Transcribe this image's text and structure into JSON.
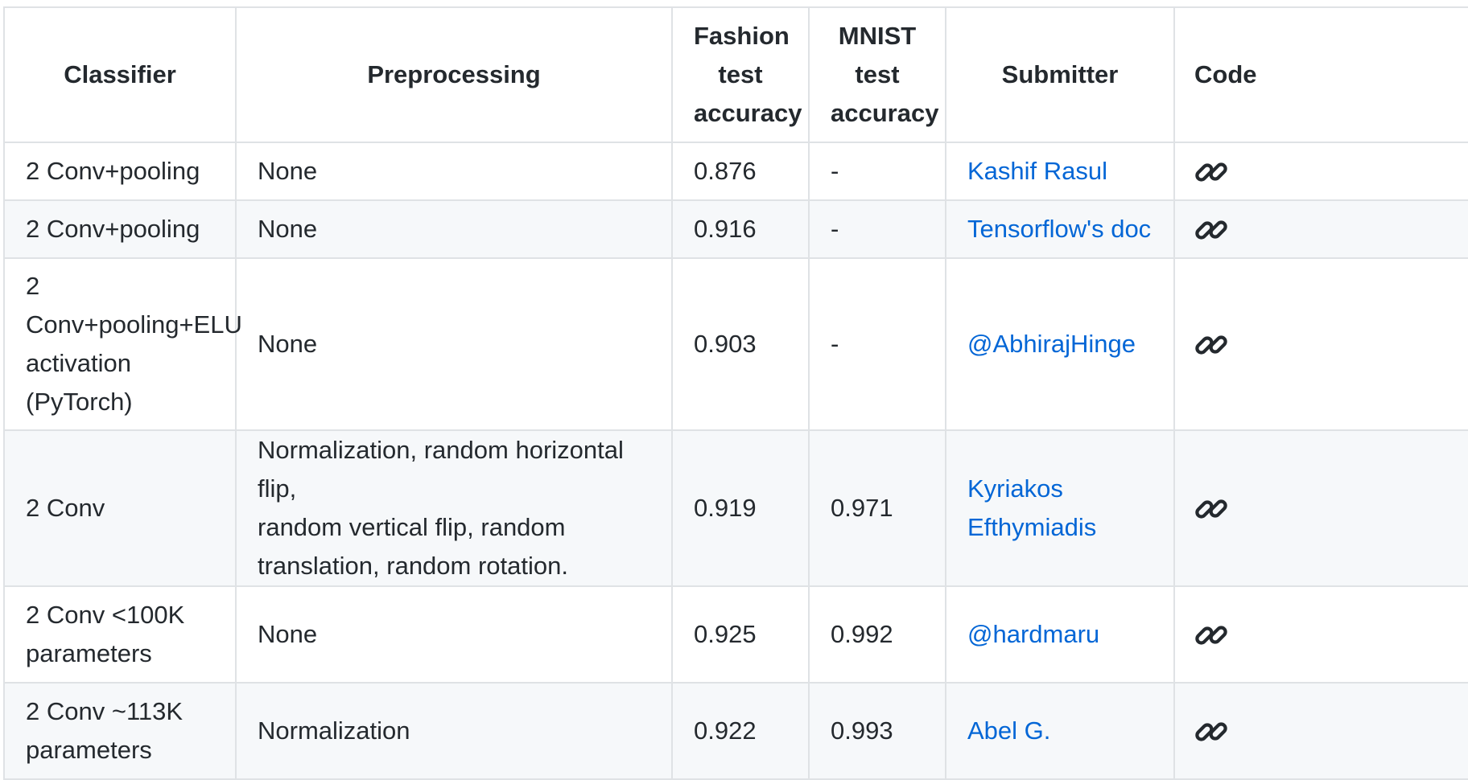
{
  "headers": {
    "classifier": "Classifier",
    "preprocessing": "Preprocessing",
    "fashion_line1": "Fashion",
    "fashion_line2": "test",
    "fashion_line3": "accuracy",
    "mnist_line1": "MNIST",
    "mnist_line2": "test",
    "mnist_line3": "accuracy",
    "submitter": "Submitter",
    "code": "Code"
  },
  "rows": [
    {
      "classifier_lines": [
        "2 Conv+pooling"
      ],
      "preprocessing_lines": [
        "None"
      ],
      "fashion": "0.876",
      "mnist": "-",
      "submitter_lines": [
        "Kashif Rasul"
      ],
      "code_icon": "link-icon"
    },
    {
      "classifier_lines": [
        "2 Conv+pooling"
      ],
      "preprocessing_lines": [
        "None"
      ],
      "fashion": "0.916",
      "mnist": "-",
      "submitter_lines": [
        "Tensorflow's doc"
      ],
      "code_icon": "link-icon"
    },
    {
      "classifier_lines": [
        "2",
        "Conv+pooling+ELU",
        "activation",
        "(PyTorch)"
      ],
      "preprocessing_lines": [
        "None"
      ],
      "fashion": "0.903",
      "mnist": "-",
      "submitter_lines": [
        "@AbhirajHinge"
      ],
      "code_icon": "link-icon"
    },
    {
      "classifier_lines": [
        "2 Conv"
      ],
      "preprocessing_lines": [
        "Normalization, random horizontal flip,",
        "random vertical flip, random",
        "translation, random rotation."
      ],
      "fashion": "0.919",
      "mnist": "0.971",
      "submitter_lines": [
        "Kyriakos",
        "Efthymiadis"
      ],
      "code_icon": "link-icon"
    },
    {
      "classifier_lines": [
        "2 Conv <100K",
        "parameters"
      ],
      "preprocessing_lines": [
        "None"
      ],
      "fashion": "0.925",
      "mnist": "0.992",
      "submitter_lines": [
        "@hardmaru"
      ],
      "code_icon": "link-icon"
    },
    {
      "classifier_lines": [
        "2 Conv ~113K",
        "parameters"
      ],
      "preprocessing_lines": [
        "Normalization"
      ],
      "fashion": "0.922",
      "mnist": "0.993",
      "submitter_lines": [
        "Abel G."
      ],
      "code_icon": "link-icon"
    }
  ],
  "colors": {
    "link": "#0366d6",
    "border": "#dfe2e5",
    "stripe": "#f6f8fa",
    "text": "#24292e"
  }
}
